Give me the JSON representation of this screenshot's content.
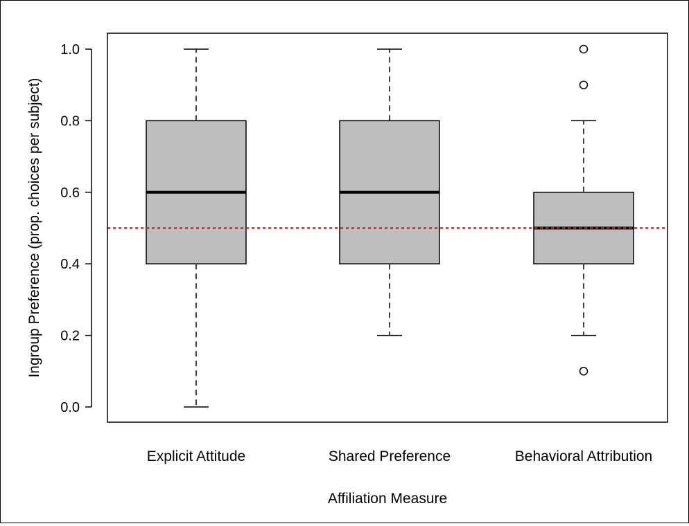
{
  "chart_data": {
    "type": "boxplot",
    "title": "",
    "xlabel": "Affiliation Measure",
    "ylabel": "Ingroup Preference (prop. choices per subject)",
    "ylim": [
      0.0,
      1.0
    ],
    "yticks": [
      "0.0",
      "0.2",
      "0.4",
      "0.6",
      "0.8",
      "1.0"
    ],
    "grid": false,
    "reference_line": {
      "y": 0.5,
      "color": "#e31a1c",
      "style": "dotted"
    },
    "box_fill": "#bebebe",
    "categories": [
      "Explicit Attitude",
      "Shared Preference",
      "Behavioral Attribution"
    ],
    "boxes": [
      {
        "name": "Explicit Attitude",
        "whisker_low": 0.0,
        "q1": 0.4,
        "median": 0.6,
        "q3": 0.8,
        "whisker_high": 1.0,
        "outliers": []
      },
      {
        "name": "Shared Preference",
        "whisker_low": 0.2,
        "q1": 0.4,
        "median": 0.6,
        "q3": 0.8,
        "whisker_high": 1.0,
        "outliers": []
      },
      {
        "name": "Behavioral Attribution",
        "whisker_low": 0.2,
        "q1": 0.4,
        "median": 0.5,
        "q3": 0.6,
        "whisker_high": 0.8,
        "outliers": [
          1.0,
          0.9,
          0.1
        ]
      }
    ]
  }
}
